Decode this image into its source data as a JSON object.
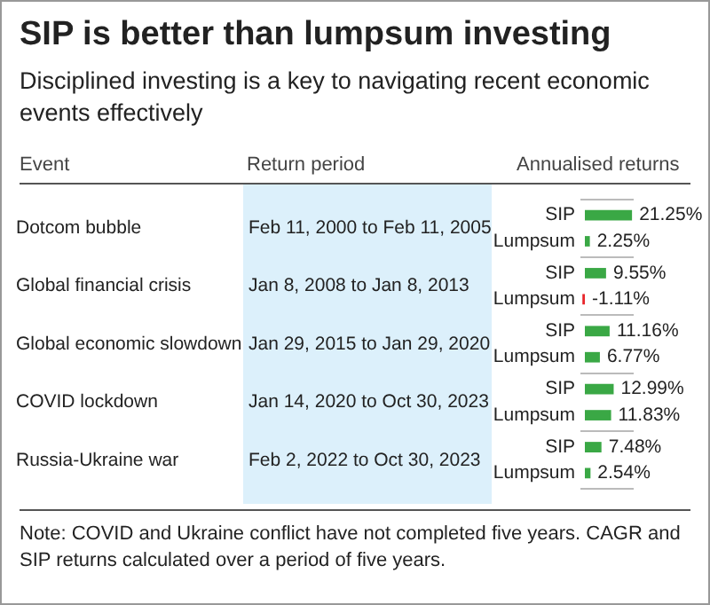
{
  "chart_data": {
    "type": "bar",
    "orientation": "horizontal",
    "title": "SIP is better than lumpsum investing",
    "subtitle": "Disciplined investing is a key to navigating recent economic events effectively",
    "categories": [
      "Dotcom bubble",
      "Global financial crisis",
      "Global economic slowdown",
      "COVID lockdown",
      "Russia-Ukraine war"
    ],
    "series": [
      {
        "name": "SIP",
        "color": "#3aa845",
        "values": [
          21.25,
          9.55,
          11.16,
          12.99,
          7.48
        ],
        "value_labels": [
          "21.25%",
          "9.55%",
          "11.16%",
          "12.99%",
          "7.48%"
        ]
      },
      {
        "name": "Lumpsum",
        "colors": [
          "#3aa845",
          "#e8262b",
          "#3aa845",
          "#3aa845",
          "#3aa845"
        ],
        "values": [
          2.25,
          -1.11,
          6.77,
          11.83,
          2.54
        ],
        "value_labels": [
          "2.25%",
          "-1.11%",
          "6.77%",
          "11.83%",
          "2.54%"
        ]
      }
    ],
    "xlim": [
      -2,
      22
    ],
    "tick_labels": "y",
    "grid": "y",
    "legend": false,
    "annotations": [
      "Event",
      "Return period",
      "Annualised returns",
      "Feb 11, 2000 to Feb 11, 2005",
      "Jan 8, 2008 to Jan 8, 2013",
      "Jan 29, 2015 to Jan 29, 2020",
      "Jan 14, 2020 to Oct 30, 2023",
      "Feb 2, 2022 to Oct 30, 2023",
      "Note: COVID and Ukraine conflict have not completed five years. CAGR and SIP returns calculated over a period of five years."
    ]
  }
}
